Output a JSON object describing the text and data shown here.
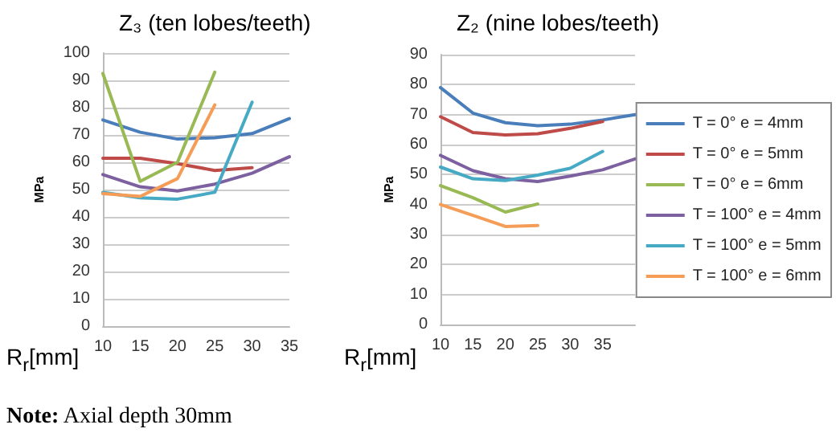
{
  "chart_data": [
    {
      "type": "line",
      "title": "Z₃ (ten lobes/teeth)",
      "xlabel": "R$_{r}$[mm]",
      "ylabel": "MPa",
      "categories": [
        "10",
        "15",
        "20",
        "25",
        "30",
        "35"
      ],
      "ylim": [
        0,
        100
      ],
      "yticks": [
        0,
        10,
        20,
        30,
        40,
        50,
        60,
        70,
        80,
        90,
        100
      ],
      "grid": "y",
      "legend": false,
      "marker": "none",
      "line_style": "solid",
      "series": [
        {
          "color": "#4a7ebb",
          "values": [
            75.5,
            71,
            68.5,
            69,
            70.5,
            76
          ]
        },
        {
          "color": "#be4b48",
          "values": [
            61.5,
            61.5,
            59.5,
            57,
            58,
            null
          ]
        },
        {
          "color": "#98b954",
          "values": [
            92.5,
            53,
            60,
            93,
            null,
            null
          ]
        },
        {
          "color": "#7d60a0",
          "values": [
            55.5,
            51,
            49.5,
            52,
            56,
            62
          ]
        },
        {
          "color": "#46aac5",
          "values": [
            49,
            47,
            46.5,
            49,
            82,
            null
          ]
        },
        {
          "color": "#f59d56",
          "values": [
            48.5,
            47.5,
            54,
            81,
            null,
            null
          ]
        }
      ],
      "annotations": [
        "Note: Axial depth 30mm"
      ]
    },
    {
      "type": "line",
      "title": "Z₂ (nine lobes/teeth)",
      "xlabel": "R$_{r}$[mm]",
      "ylabel": "MPa",
      "categories": [
        "10",
        "15",
        "20",
        "25",
        "30",
        "35",
        null
      ],
      "ylim": [
        0,
        90
      ],
      "yticks": [
        0,
        10,
        20,
        30,
        40,
        50,
        60,
        70,
        80,
        90
      ],
      "grid": "y",
      "legend": "right",
      "marker": "none",
      "line_style": "solid",
      "series": [
        {
          "name": "T = 0° e = 4mm",
          "color": "#4a7ebb",
          "values": [
            79,
            70.5,
            67.3,
            66.3,
            66.8,
            68.2,
            70
          ]
        },
        {
          "name": "T = 0° e = 5mm",
          "color": "#be4b48",
          "values": [
            69.3,
            64,
            63.2,
            63.6,
            65.4,
            67.7,
            null
          ]
        },
        {
          "name": "T = 0° e = 6mm",
          "color": "#98b954",
          "values": [
            46.3,
            42.3,
            37.5,
            40.2,
            null,
            null,
            null
          ]
        },
        {
          "name": "T = 100° e = 4mm",
          "color": "#7d60a0",
          "values": [
            56.4,
            51.3,
            48.6,
            47.7,
            49.5,
            51.6,
            55.2
          ]
        },
        {
          "name": "T = 100° e = 5mm",
          "color": "#46aac5",
          "values": [
            52.5,
            48.6,
            48,
            49.8,
            52.1,
            57.7,
            null
          ]
        },
        {
          "name": "T = 100° e = 6mm",
          "color": "#f59d56",
          "values": [
            40,
            36.4,
            32.7,
            33,
            null,
            null,
            null
          ]
        }
      ]
    }
  ]
}
